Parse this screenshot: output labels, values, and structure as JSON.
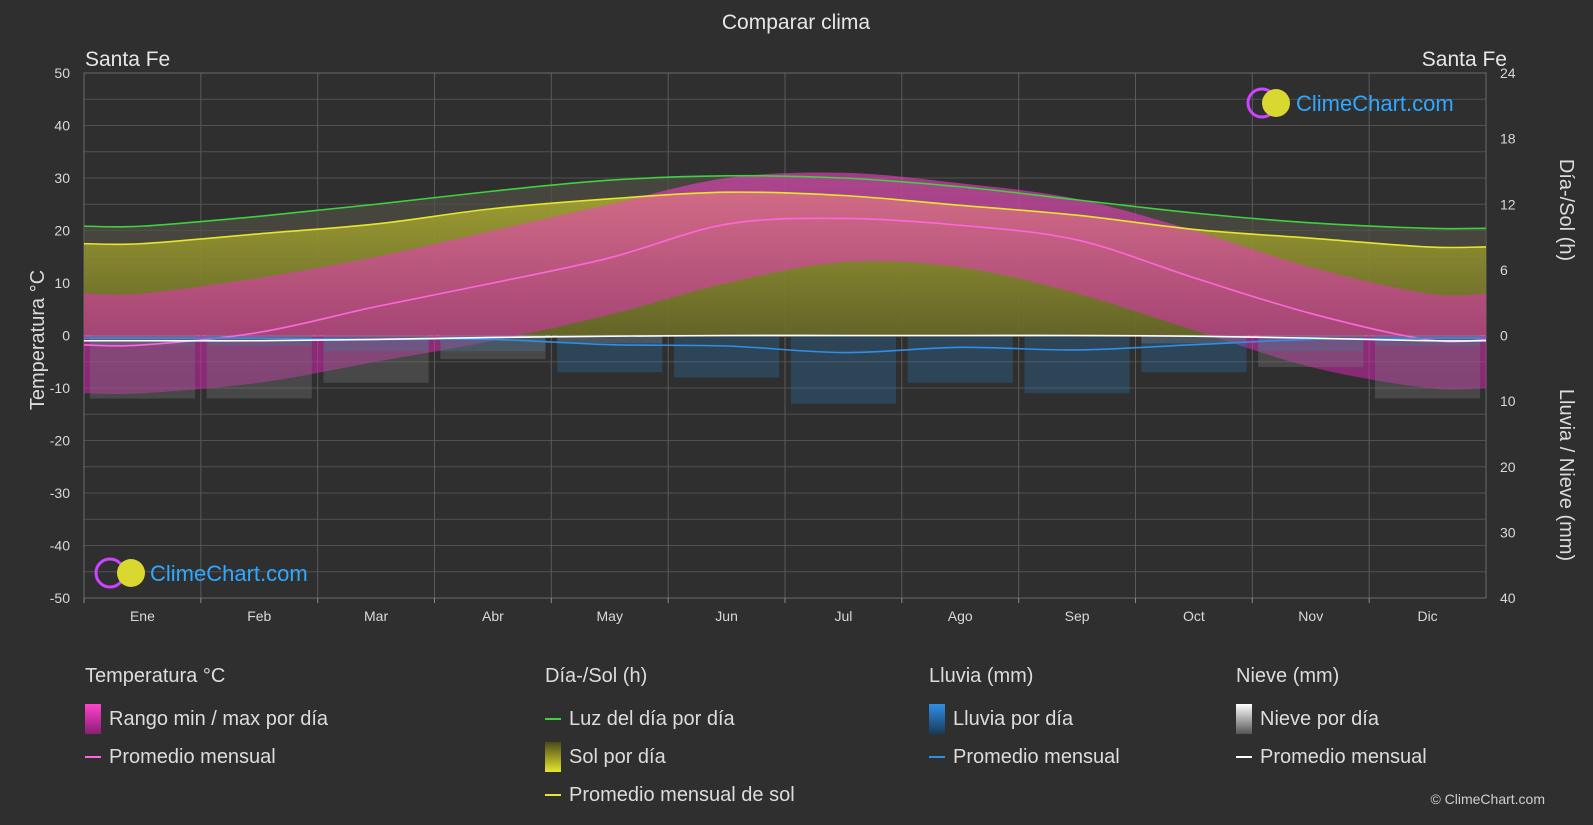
{
  "title": "Comparar clima",
  "location_left": "Santa Fe",
  "location_right": "Santa Fe",
  "axis": {
    "left_label": "Temperatura °C",
    "right_top_label": "Día-/Sol (h)",
    "right_bottom_label": "Lluvia / Nieve (mm)",
    "left_ticks": [
      "50",
      "40",
      "30",
      "20",
      "10",
      "0",
      "-10",
      "-20",
      "-30",
      "-40",
      "-50"
    ],
    "right_top_ticks": [
      "24",
      "18",
      "12",
      "6",
      "0"
    ],
    "right_bottom_ticks": [
      "10",
      "20",
      "30",
      "40"
    ]
  },
  "logo_text": "ClimeChart.com",
  "copyright": "© ClimeChart.com",
  "chart_data": {
    "type": "line",
    "categories": [
      "Ene",
      "Feb",
      "Mar",
      "Abr",
      "May",
      "Jun",
      "Jul",
      "Ago",
      "Sep",
      "Oct",
      "Nov",
      "Dic"
    ],
    "temp_ylim": [
      -50,
      50
    ],
    "sun_ylim": [
      0,
      24
    ],
    "precip_ylim": [
      0,
      40
    ],
    "series": [
      {
        "name": "Luz del día por día",
        "axis": "sun",
        "color": "#3fd13f",
        "values": [
          10.0,
          10.9,
          12.0,
          13.2,
          14.2,
          14.6,
          14.4,
          13.6,
          12.4,
          11.2,
          10.3,
          9.8
        ]
      },
      {
        "name": "Promedio mensual de sol",
        "axis": "sun",
        "color": "#e6e62e",
        "values": [
          8.4,
          9.3,
          10.2,
          11.6,
          12.5,
          13.1,
          12.8,
          11.9,
          11.0,
          9.7,
          8.9,
          8.1
        ]
      },
      {
        "name": "Promedio mensual",
        "axis": "temp",
        "color": "#ff66dd",
        "values": [
          -1.8,
          0.6,
          5.5,
          10.0,
          14.8,
          21.2,
          22.3,
          21.0,
          18.2,
          11.0,
          4.2,
          -0.8
        ]
      },
      {
        "name": "Promedio mensual lluvia",
        "axis": "precip",
        "color": "#2f8fe6",
        "values": [
          0.4,
          0.4,
          0.6,
          0.6,
          1.4,
          1.6,
          2.6,
          1.8,
          2.2,
          1.4,
          0.6,
          0.4
        ]
      },
      {
        "name": "Promedio mensual nieve",
        "axis": "precip",
        "color": "#ffffff",
        "values": [
          0.8,
          0.8,
          0.6,
          0.3,
          0.1,
          0,
          0,
          0,
          0,
          0.1,
          0.4,
          0.8
        ]
      }
    ],
    "temp_range_max": [
      8,
      11,
      15,
      20,
      25,
      30,
      31,
      29,
      26,
      20,
      13,
      8
    ],
    "temp_range_min": [
      -11,
      -9,
      -5,
      -1,
      4,
      10,
      14,
      13,
      8,
      1,
      -6,
      -10
    ]
  },
  "legend": {
    "temp": {
      "head": "Temperatura °C",
      "range": "Rango min / max por día",
      "avg": "Promedio mensual"
    },
    "sun": {
      "head": "Día-/Sol (h)",
      "daylight": "Luz del día por día",
      "sun": "Sol por día",
      "avg": "Promedio mensual de sol"
    },
    "rain": {
      "head": "Lluvia (mm)",
      "rain": "Lluvia por día",
      "avg": "Promedio mensual"
    },
    "snow": {
      "head": "Nieve (mm)",
      "snow": "Nieve por día",
      "avg": "Promedio mensual"
    }
  },
  "colors": {
    "background": "#2f2f2f",
    "grid": "#555555",
    "daylight": "#3fd13f",
    "sunshine": "#e6e62e",
    "temp": "#ff66dd",
    "rain": "#2f8fe6",
    "snow": "#ffffff",
    "logo": "#2fa8ff"
  }
}
